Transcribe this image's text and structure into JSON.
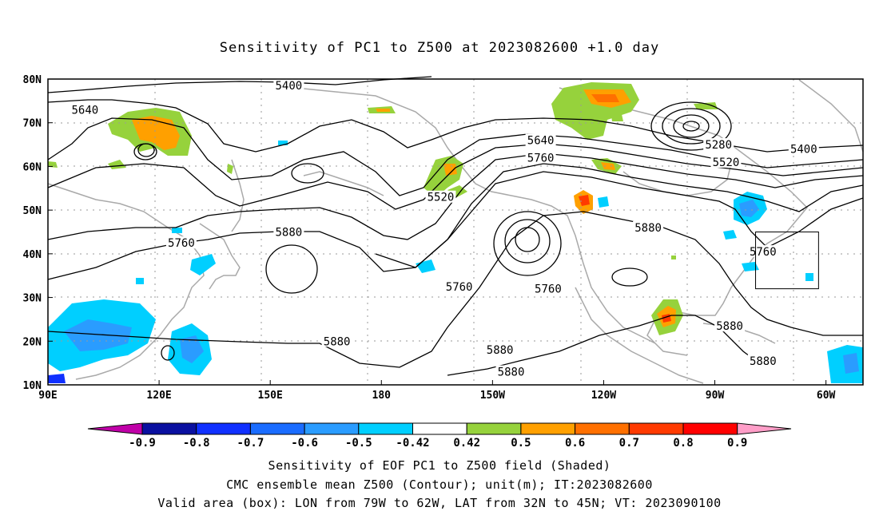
{
  "title": "Sensitivity of PC1 to Z500 at 2023082600 +1.0 day",
  "map": {
    "lat_labels": [
      "80N",
      "70N",
      "60N",
      "50N",
      "40N",
      "30N",
      "20N",
      "10N"
    ],
    "lon_labels": [
      "90E",
      "120E",
      "150E",
      "180",
      "150W",
      "120W",
      "90W",
      "60W"
    ],
    "lat_range": [
      10,
      80
    ],
    "lon_range_east": [
      90,
      310
    ],
    "valid_box": {
      "lon": [
        -79,
        -62
      ],
      "lat": [
        32,
        45
      ]
    },
    "contour_labels": [
      {
        "text": "5400",
        "lon": 155,
        "lat": 78.5
      },
      {
        "text": "5640",
        "lon": 100,
        "lat": 73
      },
      {
        "text": "5640",
        "lon": 223,
        "lat": 66
      },
      {
        "text": "5760",
        "lon": 223,
        "lat": 62
      },
      {
        "text": "5520",
        "lon": 196,
        "lat": 53
      },
      {
        "text": "5280",
        "lon": 271,
        "lat": 65
      },
      {
        "text": "5520",
        "lon": 273,
        "lat": 61
      },
      {
        "text": "5400",
        "lon": 294,
        "lat": 64
      },
      {
        "text": "5760",
        "lon": 126,
        "lat": 42.5
      },
      {
        "text": "5880",
        "lon": 155,
        "lat": 45
      },
      {
        "text": "5760",
        "lon": 201,
        "lat": 32.5
      },
      {
        "text": "5760",
        "lon": 225,
        "lat": 32
      },
      {
        "text": "5880",
        "lon": 252,
        "lat": 46
      },
      {
        "text": "5760",
        "lon": 283,
        "lat": 40.5
      },
      {
        "text": "5880",
        "lon": 168,
        "lat": 20
      },
      {
        "text": "5880",
        "lon": 212,
        "lat": 18
      },
      {
        "text": "5880",
        "lon": 215,
        "lat": 13
      },
      {
        "text": "5880",
        "lon": 274,
        "lat": 23.5
      },
      {
        "text": "5880",
        "lon": 283,
        "lat": 15.5
      }
    ]
  },
  "colorbar": {
    "labels": [
      "-0.9",
      "-0.8",
      "-0.7",
      "-0.6",
      "-0.5",
      "-0.42",
      "0.42",
      "0.5",
      "0.6",
      "0.7",
      "0.8",
      "0.9"
    ],
    "colors": [
      "#c000a8",
      "#0a10a0",
      "#1030ff",
      "#1a6cff",
      "#2a9cff",
      "#00cfff",
      "#ffffff",
      "#96d23c",
      "#ffa000",
      "#ff7000",
      "#ff3a00",
      "#ff0000",
      "#ff9ec8"
    ]
  },
  "footer": {
    "line1": "Sensitivity of EOF PC1 to Z500 field (Shaded)",
    "line2": "CMC ensemble mean Z500 (Contour); unit(m); IT:2023082600",
    "line3": "Valid area (box): LON from 79W to 62W, LAT from 32N to 45N; VT: 2023090100"
  }
}
